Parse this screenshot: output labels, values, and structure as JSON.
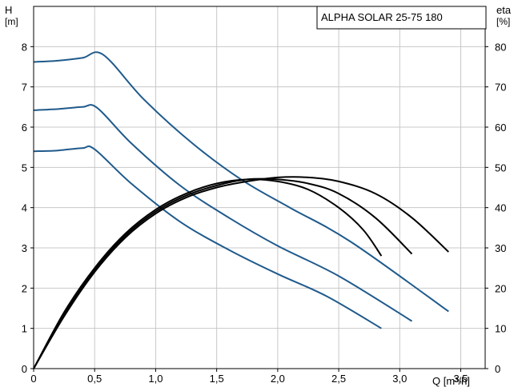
{
  "chart_data": {
    "type": "line",
    "title": "ALPHA SOLAR 25-75  180",
    "y_left_label_top": "H",
    "y_left_label_unit": "[m]",
    "y_right_label_top": "eta",
    "y_right_label_unit": "[%]",
    "x_label": "Q [m³/h]",
    "xlim": [
      0,
      3.7
    ],
    "ylim_left": [
      0,
      9
    ],
    "ylim_right": [
      0,
      90
    ],
    "x_ticks": [
      0,
      0.5,
      1.0,
      1.5,
      2.0,
      2.5,
      3.0,
      3.5
    ],
    "x_tick_labels": [
      "0",
      "0,5",
      "1,0",
      "1,5",
      "2,0",
      "2,5",
      "3,0",
      "3,5"
    ],
    "y_left_ticks": [
      0,
      1,
      2,
      3,
      4,
      5,
      6,
      7,
      8
    ],
    "y_left_tick_labels": [
      "0",
      "1",
      "2",
      "3",
      "4",
      "5",
      "6",
      "7",
      "8"
    ],
    "y_right_ticks": [
      0,
      10,
      20,
      30,
      40,
      50,
      60,
      70,
      80
    ],
    "y_right_tick_labels": [
      "0",
      "10",
      "20",
      "30",
      "40",
      "50",
      "60",
      "70",
      "80"
    ],
    "grid": true,
    "colors": {
      "head": "#1f5a8c",
      "efficiency": "#000000",
      "grid": "#c8c8c8"
    },
    "head_series": [
      {
        "x": [
          0,
          0.2,
          0.4,
          0.5,
          0.8,
          1.2,
          1.6,
          2.0,
          2.4,
          2.85
        ],
        "y": [
          5.4,
          5.42,
          5.48,
          5.45,
          4.6,
          3.65,
          2.95,
          2.35,
          1.8,
          1.0
        ]
      },
      {
        "x": [
          0,
          0.2,
          0.4,
          0.52,
          0.8,
          1.2,
          1.6,
          2.0,
          2.5,
          3.1
        ],
        "y": [
          6.42,
          6.45,
          6.5,
          6.48,
          5.6,
          4.55,
          3.75,
          3.05,
          2.3,
          1.18
        ]
      },
      {
        "x": [
          0,
          0.2,
          0.4,
          0.57,
          0.9,
          1.3,
          1.7,
          2.1,
          2.6,
          3.4
        ],
        "y": [
          7.62,
          7.65,
          7.72,
          7.8,
          6.7,
          5.6,
          4.7,
          4.0,
          3.15,
          1.42
        ]
      }
    ],
    "efficiency_series": [
      {
        "x": [
          0,
          0.25,
          0.5,
          0.75,
          1.0,
          1.25,
          1.5,
          1.75,
          2.0,
          2.25,
          2.5,
          2.7,
          2.85
        ],
        "y": [
          0,
          14,
          25,
          33.5,
          39.5,
          43.5,
          46,
          47,
          46.5,
          44.5,
          40,
          34.5,
          28
        ]
      },
      {
        "x": [
          0,
          0.25,
          0.5,
          0.75,
          1.0,
          1.25,
          1.5,
          1.75,
          2.0,
          2.25,
          2.5,
          2.8,
          3.1
        ],
        "y": [
          0,
          13.5,
          24.5,
          33,
          39,
          43,
          45.5,
          47,
          47,
          46,
          43.5,
          37.5,
          28.5
        ]
      },
      {
        "x": [
          0,
          0.25,
          0.5,
          0.75,
          1.0,
          1.25,
          1.5,
          1.75,
          2.0,
          2.25,
          2.5,
          2.8,
          3.1,
          3.4
        ],
        "y": [
          0,
          13,
          24,
          32.5,
          38.5,
          42.5,
          45,
          46.5,
          47.5,
          47.5,
          46.5,
          43.5,
          37.5,
          29
        ]
      }
    ]
  }
}
